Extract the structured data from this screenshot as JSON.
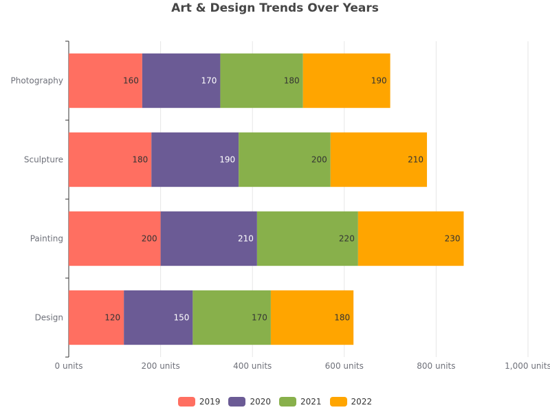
{
  "chart_data": {
    "type": "bar",
    "orientation": "horizontal",
    "stacked": true,
    "title": "Art & Design Trends Over Years",
    "categories": [
      "Photography",
      "Sculpture",
      "Painting",
      "Design"
    ],
    "series": [
      {
        "name": "2019",
        "color": "#FF6F61",
        "values": [
          160,
          180,
          200,
          120
        ]
      },
      {
        "name": "2020",
        "color": "#6B5B95",
        "values": [
          170,
          190,
          210,
          150
        ]
      },
      {
        "name": "2021",
        "color": "#88B04B",
        "values": [
          180,
          200,
          220,
          170
        ]
      },
      {
        "name": "2022",
        "color": "#FFA500",
        "values": [
          190,
          210,
          230,
          180
        ]
      }
    ],
    "xlim": [
      0,
      1000
    ],
    "x_ticks": [
      0,
      200,
      400,
      600,
      800,
      1000
    ],
    "x_tick_labels": [
      "0 units",
      "200 units",
      "400 units",
      "600 units",
      "800 units",
      "1,000 units"
    ],
    "grid": "vertical",
    "legend": "bottom-center"
  }
}
